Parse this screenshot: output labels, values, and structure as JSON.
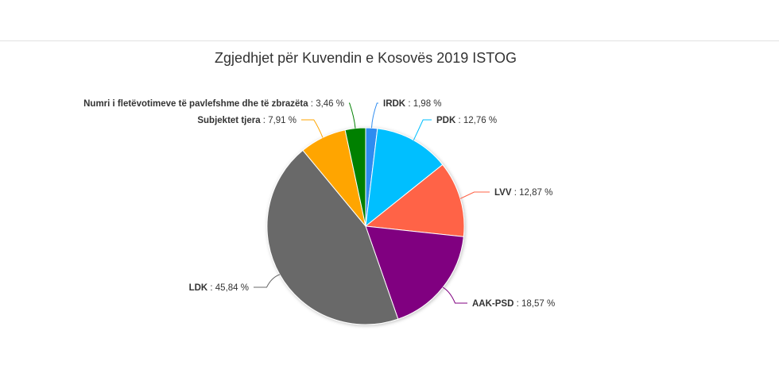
{
  "chart_data": {
    "type": "pie",
    "title": "Zgjedhjet për Kuvendin e Kosovës 2019 ISTOG",
    "slices": [
      {
        "name": "IRDK",
        "value": 1.98,
        "value_label": "1,98 %",
        "color": "#2f8cf0"
      },
      {
        "name": "PDK",
        "value": 12.76,
        "value_label": "12,76 %",
        "color": "#00bfff"
      },
      {
        "name": "LVV",
        "value": 12.87,
        "value_label": "12,87 %",
        "color": "#ff6347"
      },
      {
        "name": "AAK-PSD",
        "value": 18.57,
        "value_label": "18,57 %",
        "color": "#800080"
      },
      {
        "name": "LDK",
        "value": 45.84,
        "value_label": "45,84 %",
        "color": "#696969"
      },
      {
        "name": "Subjektet tjera",
        "value": 7.91,
        "value_label": "7,91 %",
        "color": "#ffa500"
      },
      {
        "name": "Numri i fletëvotimeve të pavlefshme dhe të zbrazëta",
        "value": 3.46,
        "value_label": "3,46 %",
        "color": "#008000"
      }
    ],
    "legend": "none",
    "data_labels": "outside"
  }
}
